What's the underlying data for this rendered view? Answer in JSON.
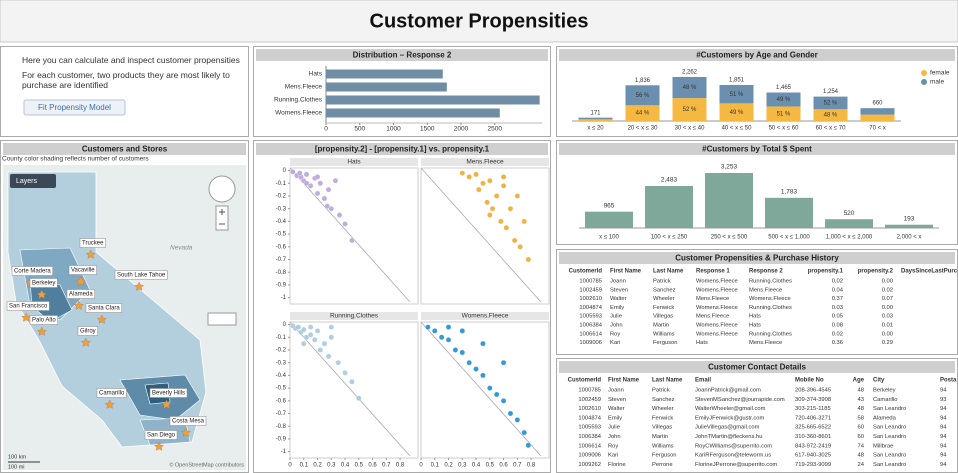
{
  "header": {
    "title": "Customer Propensities"
  },
  "intro": {
    "line1": "Here you can calculate and inspect customer propensities",
    "line2": "For each customer, two products they are most likely to purchase are identified",
    "button": "Fit Propensity Model"
  },
  "chart_data": [
    {
      "type": "bar",
      "orientation": "horizontal",
      "title": "Distribution – Response 2",
      "categories": [
        "Hats",
        "Mens.Fleece",
        "Running.Clothes",
        "Womens.Fleece"
      ],
      "values": [
        1730,
        1790,
        3165,
        2575
      ],
      "color": "#6f8ea5",
      "xlim": [
        0,
        3200
      ],
      "xticks": [
        0,
        500,
        1000,
        1500,
        2000,
        2500
      ]
    },
    {
      "type": "stacked_bar",
      "title": "#Customers by Age and Gender",
      "categories": [
        "x ≤ 20",
        "20 < x ≤ 30",
        "30 < x ≤ 40",
        "40 < x ≤ 50",
        "50 < x ≤ 60",
        "60 < x ≤ 70",
        "70 < x"
      ],
      "series": [
        {
          "name": "female",
          "color": "#f5b942",
          "values": [
            85,
            808,
            1176,
            907,
            747,
            602,
            330
          ],
          "percent": [
            null,
            44,
            52,
            49,
            51,
            48,
            null
          ],
          "percent_labels": [
            null,
            "44 %",
            "52 %",
            "49 %",
            "51 %",
            "48 %",
            null
          ]
        },
        {
          "name": "male",
          "color": "#6b8fae",
          "values": [
            86,
            1028,
            1086,
            944,
            718,
            652,
            330
          ],
          "percent": [
            null,
            56,
            48,
            51,
            49,
            52,
            null
          ],
          "percent_labels": [
            null,
            "56 %",
            "48 %",
            "51 %",
            "49 %",
            "52 %",
            null
          ]
        }
      ],
      "totals": [
        171,
        1836,
        2262,
        1851,
        1465,
        1254,
        660
      ],
      "total_labels": [
        "171",
        "1,836",
        "2,262",
        "1,851",
        "1,465",
        "1,254",
        "660"
      ],
      "legend": "top-right"
    },
    {
      "type": "bar",
      "orientation": "vertical",
      "title": "#Customers by Total $ Spent",
      "categories": [
        "x ≤ 100",
        "100 < x ≤ 250",
        "250 < x ≤ 500",
        "500 < x ≤ 1,000",
        "1,000 < x ≤ 2,000",
        "2,000 < x"
      ],
      "values": [
        965,
        2483,
        3253,
        1783,
        520,
        193
      ],
      "value_labels": [
        "965",
        "2,483",
        "3,253",
        "1,783",
        "520",
        "193"
      ],
      "color": "#7fa89a"
    },
    {
      "type": "scatter",
      "title": "[propensity.2] - [propensity.1] vs. propensity.1",
      "xlim": [
        0,
        0.93
      ],
      "ylim": [
        -1.05,
        0.02
      ],
      "xticks": [
        0,
        0.1,
        0.2,
        0.3,
        0.4,
        0.5,
        0.6,
        0.7,
        0.8
      ],
      "yticks": [
        0,
        -0.1,
        -0.2,
        -0.3,
        -0.4,
        -0.5,
        -0.6,
        -0.7,
        -0.8,
        -0.9,
        -1
      ],
      "panels": [
        {
          "name": "Hats",
          "color": "#b7a4dc",
          "x": [
            0.02,
            0.05,
            0.08,
            0.1,
            0.12,
            0.15,
            0.18,
            0.2,
            0.22,
            0.25,
            0.28,
            0.3,
            0.33,
            0.36,
            0.4,
            0.45,
            0.12,
            0.2,
            0.27,
            0.07
          ],
          "y": [
            -0.01,
            -0.04,
            -0.05,
            -0.08,
            -0.03,
            -0.12,
            -0.06,
            -0.18,
            -0.1,
            -0.22,
            -0.15,
            -0.3,
            -0.08,
            -0.35,
            -0.42,
            -0.55,
            -0.1,
            -0.05,
            -0.28,
            -0.02
          ]
        },
        {
          "name": "Mens.Fleece",
          "color": "#efa830",
          "x": [
            0.3,
            0.35,
            0.4,
            0.42,
            0.45,
            0.48,
            0.5,
            0.52,
            0.55,
            0.58,
            0.6,
            0.62,
            0.65,
            0.68,
            0.7,
            0.72,
            0.75,
            0.78,
            0.5,
            0.6
          ],
          "y": [
            -0.02,
            -0.05,
            -0.03,
            -0.15,
            -0.1,
            -0.25,
            -0.08,
            -0.3,
            -0.2,
            -0.4,
            -0.12,
            -0.45,
            -0.3,
            -0.55,
            -0.2,
            -0.6,
            -0.4,
            -0.7,
            -0.35,
            -0.05
          ]
        },
        {
          "name": "Running.Clothes",
          "color": "#a8c8df",
          "x": [
            0.02,
            0.04,
            0.06,
            0.08,
            0.1,
            0.12,
            0.15,
            0.18,
            0.2,
            0.22,
            0.25,
            0.28,
            0.3,
            0.35,
            0.4,
            0.45,
            0.15,
            0.1,
            0.3,
            0.5
          ],
          "y": [
            -0.01,
            -0.03,
            -0.02,
            -0.06,
            -0.04,
            -0.1,
            -0.08,
            -0.12,
            -0.05,
            -0.2,
            -0.15,
            -0.25,
            -0.1,
            -0.3,
            -0.38,
            -0.45,
            -0.02,
            -0.15,
            -0.02,
            -0.58
          ]
        },
        {
          "name": "Womens.Fleece",
          "color": "#1f8ed5",
          "x": [
            0.05,
            0.1,
            0.15,
            0.2,
            0.25,
            0.3,
            0.35,
            0.4,
            0.45,
            0.5,
            0.55,
            0.6,
            0.65,
            0.7,
            0.75,
            0.78,
            0.3,
            0.45,
            0.6,
            0.2
          ],
          "y": [
            -0.02,
            -0.05,
            -0.1,
            -0.12,
            -0.2,
            -0.22,
            -0.3,
            -0.35,
            -0.4,
            -0.5,
            -0.55,
            -0.6,
            -0.7,
            -0.75,
            -0.85,
            -0.95,
            -0.05,
            -0.15,
            -0.3,
            -0.02
          ]
        }
      ]
    }
  ],
  "map": {
    "title": "Customers and Stores",
    "subtitle": "County color shading reflects number of customers",
    "layers_button": "Layers",
    "region_label": "Nevada",
    "places": [
      "Truckee",
      "Corte Madera",
      "Vacaville",
      "South Lake Tahoe",
      "Berkeley",
      "Alameda",
      "San Francisco",
      "Santa Clara",
      "Palo Alto",
      "Gilroy",
      "Camarillo",
      "Beverly Hills",
      "Costa Mesa",
      "San Diego"
    ],
    "scale": [
      "100 km",
      "100 mi"
    ],
    "attribution": "© OpenStreetMap contributors"
  },
  "propensity_table": {
    "title": "Customer Propensities & Purchase History",
    "columns": [
      "CustomerId",
      "First Name",
      "Last Name",
      "Response 1",
      "Response 2",
      "propensity.1",
      "propensity.2",
      "DaysSinceLastPurc"
    ],
    "rows": [
      [
        "1000785",
        "Joann",
        "Patrick",
        "Womens.Fleece",
        "Running.Clothes",
        "0.02",
        "0.00"
      ],
      [
        "1002459",
        "Steven",
        "Sanchez",
        "Womens.Fleece",
        "Mens.Fleece",
        "0.04",
        "0.02"
      ],
      [
        "1002610",
        "Walter",
        "Wheeler",
        "Mens.Fleece",
        "Womens.Fleece",
        "0.37",
        "0.07"
      ],
      [
        "1004874",
        "Emily",
        "Fenwick",
        "Womens.Fleece",
        "Running.Clothes",
        "0.03",
        "0.00"
      ],
      [
        "1005593",
        "Julie",
        "Villegas",
        "Mens.Fleece",
        "Hats",
        "0.05",
        "0.03"
      ],
      [
        "1006384",
        "John",
        "Martin",
        "Womens.Fleece",
        "Hats",
        "0.08",
        "0.01"
      ],
      [
        "1006614",
        "Roy",
        "Williams",
        "Womens.Fleece",
        "Running.Clothes",
        "0.02",
        "0.00"
      ],
      [
        "1009006",
        "Kari",
        "Ferguson",
        "Hats",
        "Mens.Fleece",
        "0.36",
        "0.29"
      ]
    ]
  },
  "contact_table": {
    "title": "Customer Contact Details",
    "columns": [
      "CustomerId",
      "First Name",
      "Last Name",
      "Email",
      "Mobile No",
      "Age",
      "City",
      "Posta"
    ],
    "rows": [
      [
        "1000785",
        "Joann",
        "Patrick",
        "JoannPatrick@gmail.com",
        "208-396-4545",
        "48",
        "Berkeley",
        "94"
      ],
      [
        "1002459",
        "Steven",
        "Sanchez",
        "StevenMSanchez@jourrapide.com",
        "309-374-3908",
        "43",
        "Camarillo",
        "93"
      ],
      [
        "1002610",
        "Walter",
        "Wheeler",
        "WalterWheeler@gmail.com",
        "303-215-1185",
        "48",
        "San Leandro",
        "94"
      ],
      [
        "1004874",
        "Emily",
        "Fenwick",
        "EmilyJFenwick@gustr.com",
        "720-406-3271",
        "58",
        "Alameda",
        "94"
      ],
      [
        "1005593",
        "Julie",
        "Villegas",
        "JulieVillegas@gmail.com",
        "325-665-6522",
        "60",
        "San Leandro",
        "94"
      ],
      [
        "1006384",
        "John",
        "Martin",
        "JohnTMartin@fleckens.hu",
        "310-360-8601",
        "60",
        "San Leandro",
        "94"
      ],
      [
        "1006614",
        "Roy",
        "Williams",
        "RoyCWilliams@superrito.com",
        "843-972-2419",
        "74",
        "Millbrae",
        "94"
      ],
      [
        "1009006",
        "Kari",
        "Ferguson",
        "KariRFerguson@teleworm.us",
        "617-940-3025",
        "48",
        "San Leandro",
        "94"
      ],
      [
        "1009262",
        "Florine",
        "Perrone",
        "FlorineJPerrone@superrito.com",
        "719-293-9099",
        "24",
        "San Leandro",
        "94"
      ]
    ]
  }
}
